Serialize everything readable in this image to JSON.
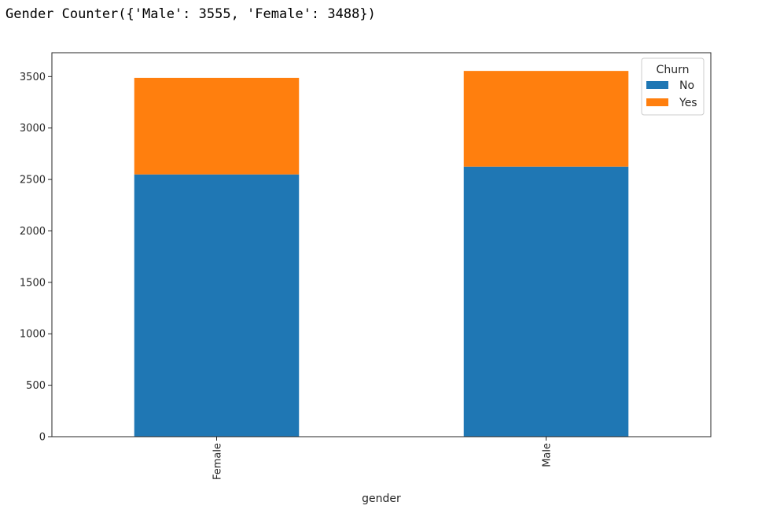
{
  "output": {
    "text": "Gender Counter({'Male': 3555, 'Female': 3488})"
  },
  "chart_data": {
    "type": "bar",
    "stacked": true,
    "categories": [
      "Female",
      "Male"
    ],
    "series": [
      {
        "name": "No",
        "values": [
          2549,
          2625
        ],
        "color": "#1f77b4"
      },
      {
        "name": "Yes",
        "values": [
          939,
          930
        ],
        "color": "#ff7f0e"
      }
    ],
    "xlabel": "gender",
    "ylabel": "",
    "ylim": [
      0,
      3732
    ],
    "yticks": [
      0,
      500,
      1000,
      1500,
      2000,
      2500,
      3000,
      3500
    ],
    "xtick_rotation": "vertical",
    "grid": false,
    "legend": {
      "title": "Churn",
      "position": "top-right"
    }
  }
}
